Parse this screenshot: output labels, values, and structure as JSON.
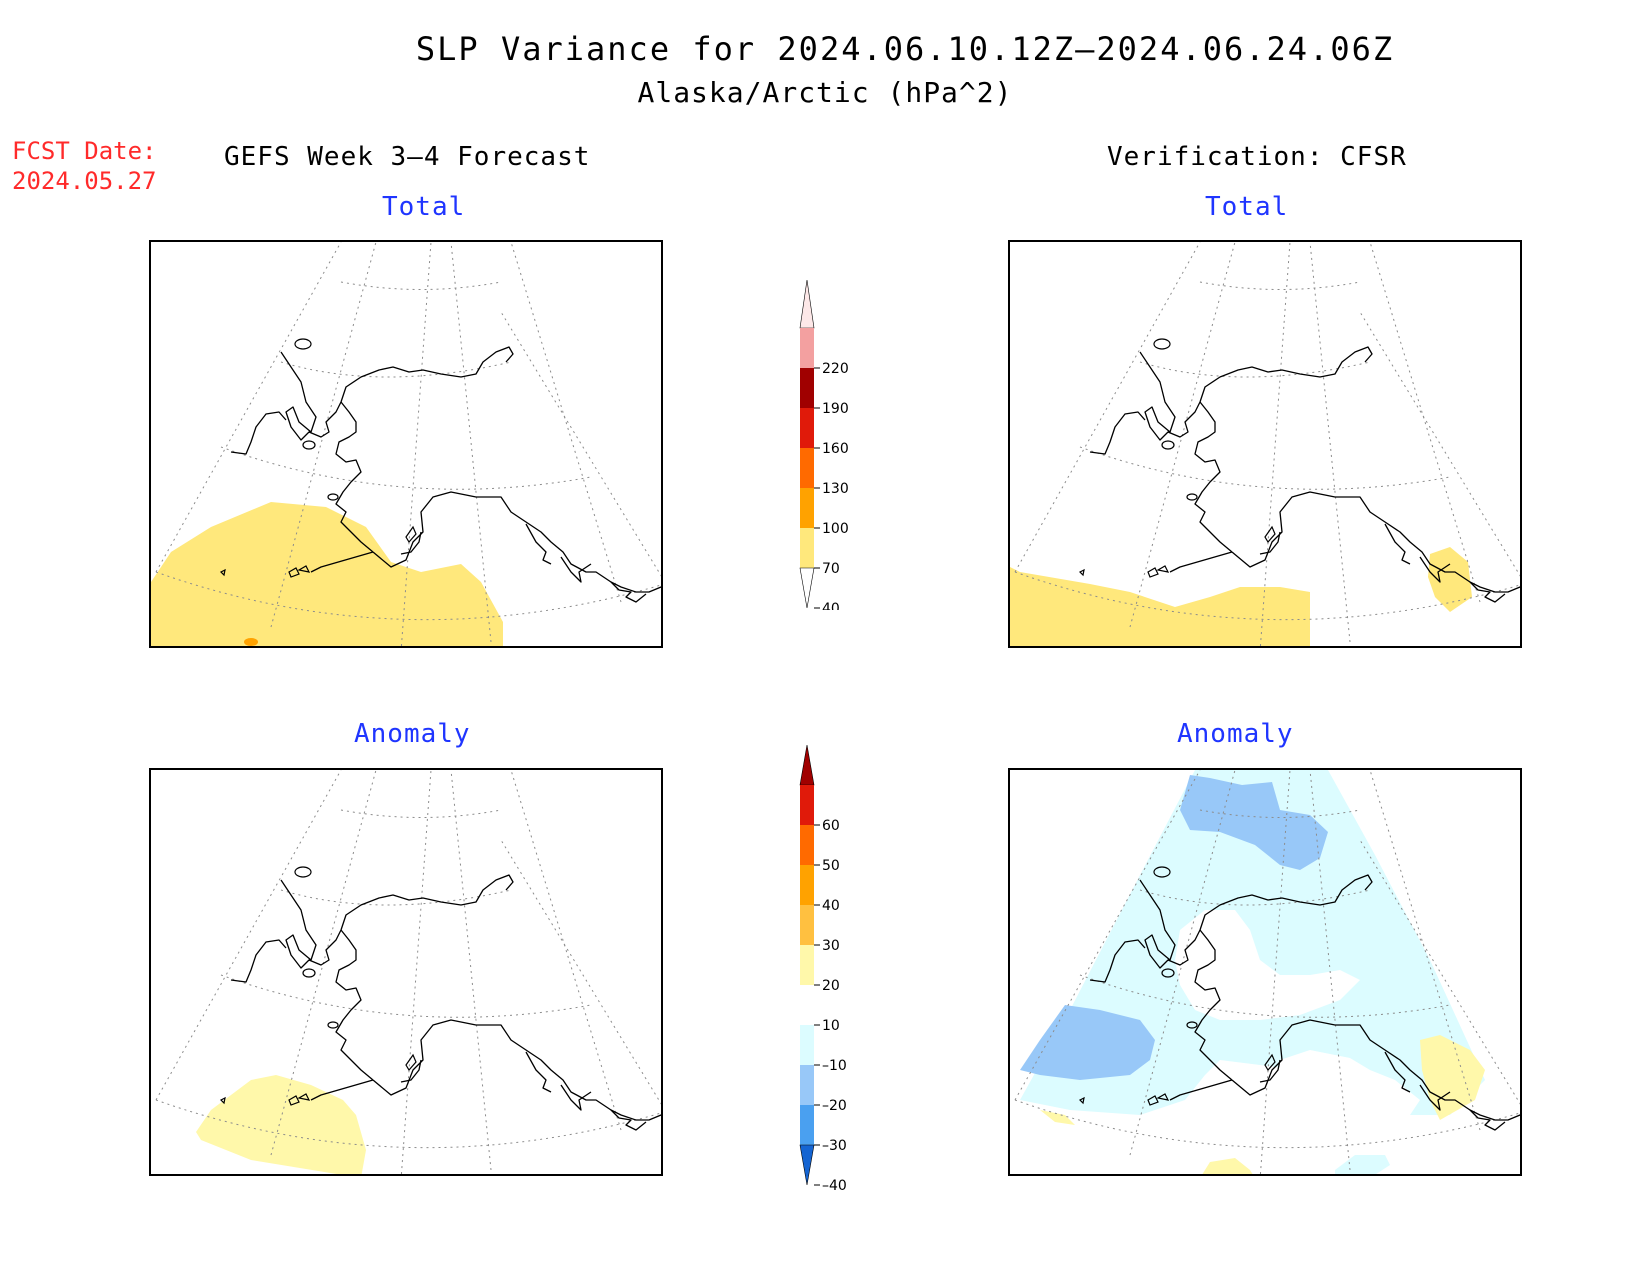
{
  "header": {
    "title_line1": "SLP Variance for 2024.06.10.12Z–2024.06.24.06Z",
    "title_line2": "Alaska/Arctic (hPa^2)",
    "fcst_label": "FCST Date:",
    "fcst_date": "2024.05.27"
  },
  "columns": {
    "left_heading": "GEFS Week 3–4 Forecast",
    "right_heading": "Verification: CFSR"
  },
  "panels": {
    "forecast_total_title": "Total",
    "verification_total_title": "Total",
    "forecast_anomaly_title": "Anomaly",
    "verification_anomaly_title": "Anomaly"
  },
  "total_colorbar": {
    "levels": [
      "220",
      "190",
      "160",
      "130",
      "100",
      "70",
      "40"
    ],
    "colors": {
      "above_220": "#fde8e8",
      "190_220": "#f3a0a0",
      "160_190": "#a00000",
      "130_160": "#e01a0a",
      "100_130": "#ff6a00",
      "70_100": "#ffa200",
      "40_70": "#ffe87c"
    }
  },
  "anomaly_colorbar": {
    "levels": [
      "60",
      "50",
      "40",
      "30",
      "20",
      "10",
      "–10",
      "–20",
      "–30",
      "–40"
    ],
    "colors": {
      "above_60": "#a00000",
      "50_60": "#e01a0a",
      "40_50": "#ff6a00",
      "30_40": "#ffa200",
      "20_30": "#ffc040",
      "10_20": "#fff8aa",
      "neg10_10": "#ffffff",
      "neg20_neg10": "#dcfcff",
      "neg30_neg20": "#98c8f8",
      "neg40_neg30": "#4aa0f0",
      "below_neg40": "#1464d2"
    }
  }
}
